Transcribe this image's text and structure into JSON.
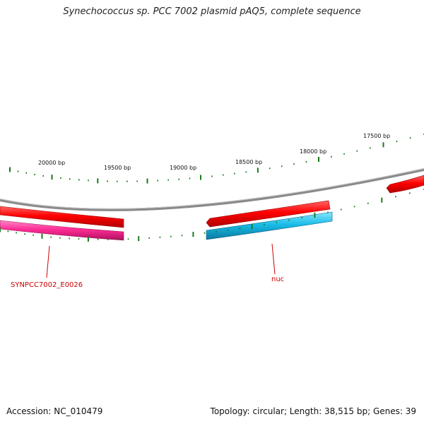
{
  "title": "Synechococcus sp. PCC 7002 plasmid pAQ5, complete sequence",
  "footer": {
    "accession": "Accession: NC_010479",
    "summary": "Topology: circular; Length: 38,515 bp; Genes: 39"
  },
  "ticks": {
    "labels": [
      "20000 bp",
      "19500 bp",
      "19000 bp",
      "18500 bp",
      "18000 bp",
      "17500 bp"
    ],
    "color": "#1a7a1a"
  },
  "genes": [
    {
      "label": "SYNPCC7002_E0026",
      "color": "#ff3399"
    },
    {
      "label": "nuc",
      "color": "#33ccff"
    }
  ],
  "colors": {
    "forward_gene": "#ff0000",
    "backbone": "#888888",
    "label_text": "#cc0000"
  }
}
